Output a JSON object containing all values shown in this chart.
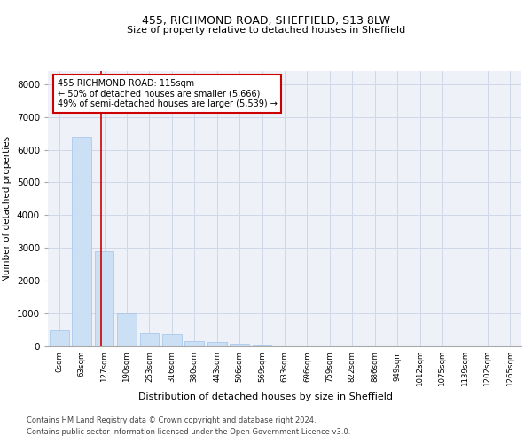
{
  "title1": "455, RICHMOND ROAD, SHEFFIELD, S13 8LW",
  "title2": "Size of property relative to detached houses in Sheffield",
  "xlabel": "Distribution of detached houses by size in Sheffield",
  "ylabel": "Number of detached properties",
  "annotation_line1": "455 RICHMOND ROAD: 115sqm",
  "annotation_line2": "← 50% of detached houses are smaller (5,666)",
  "annotation_line3": "49% of semi-detached houses are larger (5,539) →",
  "footer1": "Contains HM Land Registry data © Crown copyright and database right 2024.",
  "footer2": "Contains public sector information licensed under the Open Government Licence v3.0.",
  "bar_color": "#cce0f5",
  "bar_edgecolor": "#a0c4e8",
  "vline_color": "#cc0000",
  "vline_x": 1.85,
  "annotation_box_color": "#cc0000",
  "grid_color": "#d0d8e8",
  "bg_color": "#eef2f8",
  "categories": [
    "0sqm",
    "63sqm",
    "127sqm",
    "190sqm",
    "253sqm",
    "316sqm",
    "380sqm",
    "443sqm",
    "506sqm",
    "569sqm",
    "633sqm",
    "696sqm",
    "759sqm",
    "822sqm",
    "886sqm",
    "949sqm",
    "1012sqm",
    "1075sqm",
    "1139sqm",
    "1202sqm",
    "1265sqm"
  ],
  "values": [
    500,
    6400,
    2900,
    1000,
    400,
    380,
    150,
    130,
    70,
    20,
    5,
    2,
    1,
    1,
    0,
    0,
    0,
    0,
    0,
    0,
    0
  ],
  "ylim": [
    0,
    8400
  ],
  "yticks": [
    0,
    1000,
    2000,
    3000,
    4000,
    5000,
    6000,
    7000,
    8000
  ]
}
